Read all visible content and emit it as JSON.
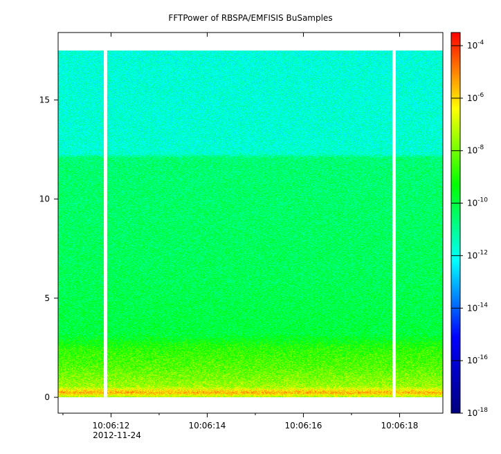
{
  "chart_data": {
    "type": "heatmap",
    "title": "FFTPower of RBSPA/EMFISIS  BuSamples",
    "xlabel": "",
    "ylabel": "",
    "x_tick_labels": [
      "10:06:12",
      "10:06:14",
      "10:06:16",
      "10:06:18"
    ],
    "x_date_label": "2012-11-24",
    "x_range_seconds": [
      10.9,
      18.9
    ],
    "x_major_ticks_seconds": [
      12,
      14,
      16,
      18
    ],
    "x_minor_ticks_seconds": [
      11,
      13,
      15,
      17
    ],
    "y_ticks": [
      0,
      5,
      10,
      15
    ],
    "ylim": [
      -0.8,
      18.4
    ],
    "data_ymax": 17.5,
    "data_gaps_seconds": [
      [
        11.85,
        11.92
      ],
      [
        17.85,
        17.92
      ]
    ],
    "colorbar": {
      "scale": "log",
      "range_log10": [
        -18,
        -3.5
      ],
      "ticks": [
        {
          "base": "10",
          "exp": "-4",
          "log": -4
        },
        {
          "base": "10",
          "exp": "-6",
          "log": -6
        },
        {
          "base": "10",
          "exp": "-8",
          "log": -8
        },
        {
          "base": "10",
          "exp": "-10",
          "log": -10
        },
        {
          "base": "10",
          "exp": "-12",
          "log": -12
        },
        {
          "base": "10",
          "exp": "-14",
          "log": -14
        },
        {
          "base": "10",
          "exp": "-16",
          "log": -16
        },
        {
          "base": "10",
          "exp": "-18",
          "log": -18
        }
      ],
      "colors": [
        "#000080",
        "#0000ff",
        "#00ffff",
        "#00ff00",
        "#ffff00",
        "#ff0000"
      ]
    },
    "power_profile": [
      {
        "f": 0.0,
        "log": -7.6
      },
      {
        "f": 0.25,
        "log": -5.5
      },
      {
        "f": 0.55,
        "log": -7.5
      },
      {
        "f": 1.5,
        "log": -8.3
      },
      {
        "f": 2.5,
        "log": -8.9
      },
      {
        "f": 3.2,
        "log": -10.0
      },
      {
        "f": 6.0,
        "log": -10.3
      },
      {
        "f": 12.1,
        "log": -10.6
      },
      {
        "f": 12.3,
        "log": -11.7
      },
      {
        "f": 17.5,
        "log": -11.8
      }
    ]
  }
}
